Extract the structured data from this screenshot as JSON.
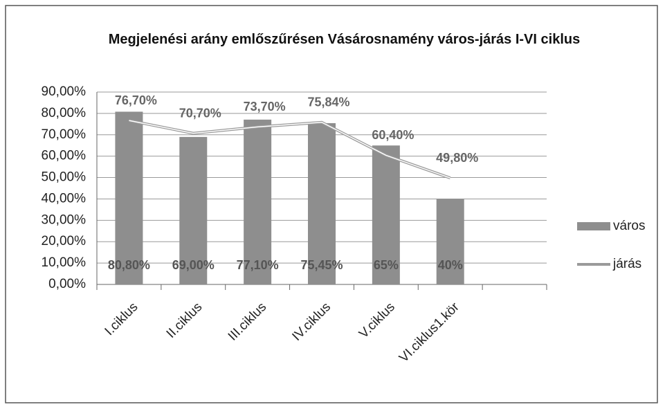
{
  "chart_data": {
    "type": "bar",
    "title": "Megjelenési arány  emlőszűrésen Vásárosnamény város-járás  I-VI ciklus",
    "categories": [
      "I.ciklus",
      "II.ciklus",
      "III.ciklus",
      "IV.ciklus",
      "V.ciklus",
      "VI.ciklus1.kör",
      null
    ],
    "series": [
      {
        "name": "város",
        "type": "bar",
        "color": "#8e8e8e",
        "values": [
          80.8,
          69,
          77.1,
          75.45,
          65,
          40,
          null
        ],
        "value_labels": [
          "80,80%",
          "69,00%",
          "77,10%",
          "75,45%",
          "65%",
          "40%",
          null
        ]
      },
      {
        "name": "járás",
        "type": "line",
        "color": "#9a9a9a",
        "values": [
          76.7,
          70.7,
          73.7,
          75.84,
          60.4,
          49.8,
          null
        ],
        "value_labels": [
          "76,70%",
          "70,70%",
          "73,70%",
          "75,84%",
          "60,40%",
          "49,80%",
          null
        ]
      }
    ],
    "ylim": [
      0,
      90
    ],
    "yticks": [
      {
        "value": 0,
        "label": "0,00%"
      },
      {
        "value": 10,
        "label": "10,00%"
      },
      {
        "value": 20,
        "label": "20,00%"
      },
      {
        "value": 30,
        "label": "30,00%"
      },
      {
        "value": 40,
        "label": "40,00%"
      },
      {
        "value": 50,
        "label": "50,00%"
      },
      {
        "value": 60,
        "label": "60,00%"
      },
      {
        "value": 70,
        "label": "70,00%"
      },
      {
        "value": 80,
        "label": "80,00%"
      },
      {
        "value": 90,
        "label": "90,00%"
      }
    ],
    "grid": true,
    "legend": "right"
  }
}
